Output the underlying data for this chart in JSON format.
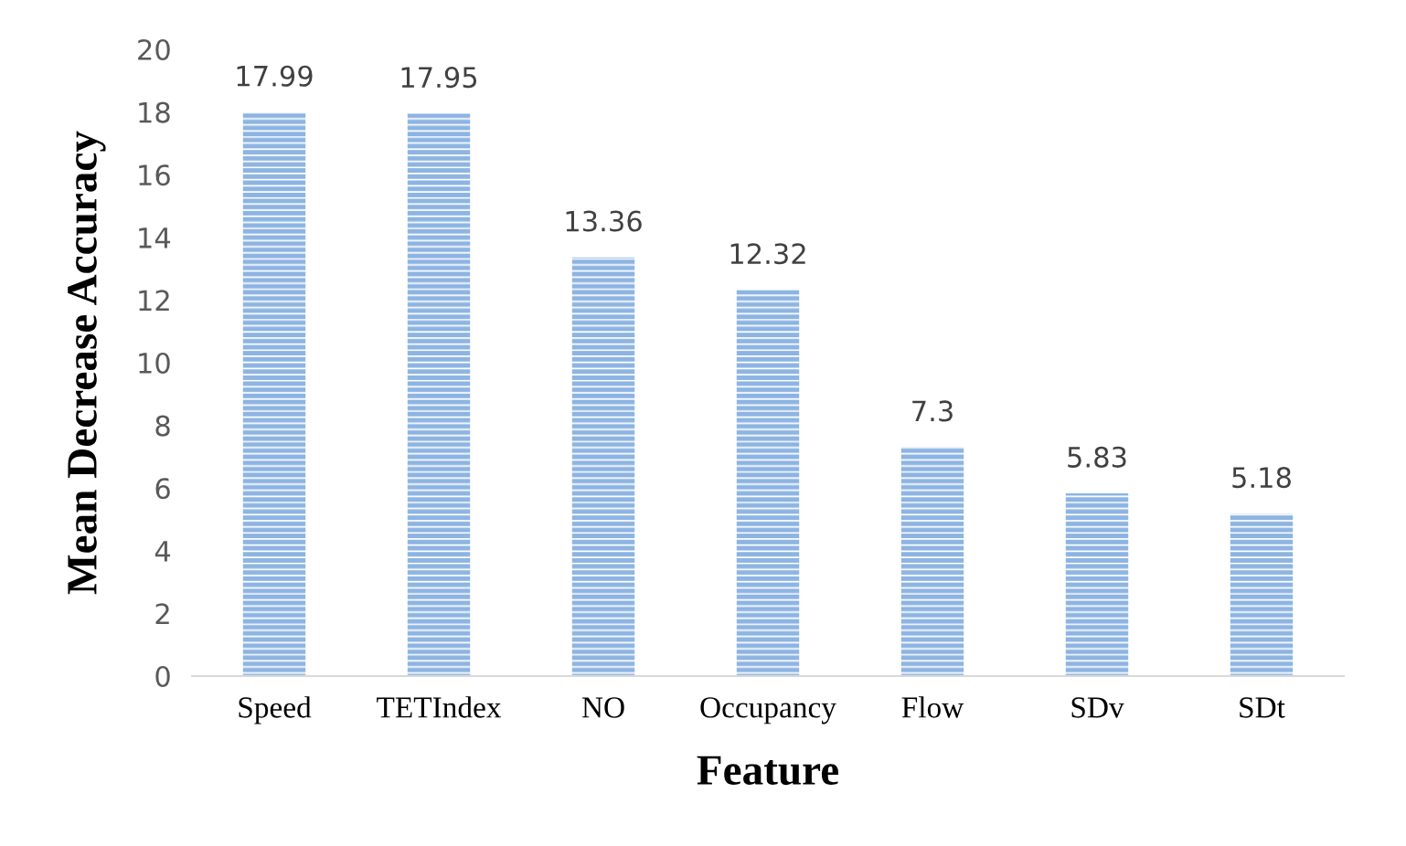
{
  "chart_data": {
    "type": "bar",
    "xlabel": "Feature",
    "ylabel": "Mean Decrease Accuracy",
    "categories": [
      "Speed",
      "TETIndex",
      "NO",
      "Occupancy",
      "Flow",
      "SDv",
      "SDt"
    ],
    "values": [
      17.99,
      17.95,
      13.36,
      12.32,
      7.3,
      5.83,
      5.18
    ],
    "color": "#8db4e2",
    "ylim": [
      0,
      20
    ],
    "yticks": [
      0,
      2,
      4,
      6,
      8,
      10,
      12,
      14,
      16,
      18,
      20
    ],
    "grid": false,
    "data_labels": true
  }
}
